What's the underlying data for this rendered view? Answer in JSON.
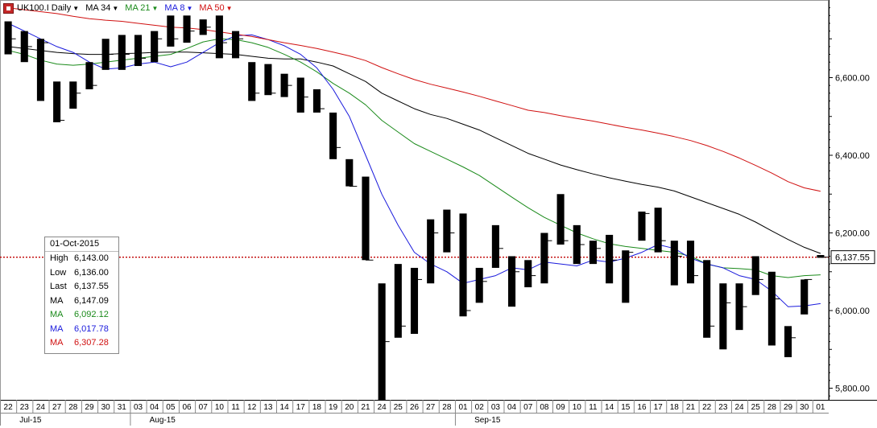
{
  "header": {
    "symbol": "UK100.I Daily",
    "indicators": [
      {
        "label": "MA 34",
        "color": "#000000"
      },
      {
        "label": "MA 21",
        "color": "#1a8a1a"
      },
      {
        "label": "MA 8",
        "color": "#1a1adc"
      },
      {
        "label": "MA 50",
        "color": "#d01010"
      }
    ]
  },
  "info_box": {
    "date": "01-Oct-2015",
    "rows": [
      {
        "label": "High",
        "value": "6,143.00",
        "color": "#000000"
      },
      {
        "label": "Low",
        "value": "6,136.00",
        "color": "#000000"
      },
      {
        "label": "Last",
        "value": "6,137.55",
        "color": "#000000"
      },
      {
        "label": "MA",
        "value": "6,147.09",
        "color": "#000000"
      },
      {
        "label": "MA",
        "value": "6,092.12",
        "color": "#1a8a1a"
      },
      {
        "label": "MA",
        "value": "6,017.78",
        "color": "#1a1adc"
      },
      {
        "label": "MA",
        "value": "6,307.28",
        "color": "#d01010"
      }
    ]
  },
  "last_price_label": "6,137.55",
  "colors": {
    "bar": "#000000",
    "ma34": "#000000",
    "ma21": "#1a8a1a",
    "ma8": "#1a1adc",
    "ma50": "#d01010",
    "last_line": "#c00000",
    "grid": "#cccccc"
  },
  "chart_data": {
    "type": "ohlc",
    "title": "UK100.I Daily",
    "ylim": [
      5770,
      6800
    ],
    "yticks": [
      5800,
      6000,
      6200,
      6400,
      6600
    ],
    "ytick_labels": [
      "5,800.00",
      "6,000.00",
      "6,200.00",
      "6,400.00",
      "6,600.00"
    ],
    "x": [
      "22",
      "23",
      "24",
      "27",
      "28",
      "29",
      "30",
      "31",
      "03",
      "04",
      "05",
      "06",
      "07",
      "10",
      "11",
      "12",
      "13",
      "14",
      "17",
      "18",
      "19",
      "20",
      "21",
      "24",
      "25",
      "26",
      "27",
      "28",
      "01",
      "02",
      "03",
      "04",
      "07",
      "08",
      "09",
      "10",
      "11",
      "14",
      "15",
      "16",
      "17",
      "18",
      "21",
      "22",
      "23",
      "24",
      "25",
      "28",
      "29",
      "30",
      "01"
    ],
    "months": [
      {
        "label": "Jul-15",
        "start": 0,
        "end": 7
      },
      {
        "label": "Aug-15",
        "start": 8,
        "end": 27
      },
      {
        "label": "Sep-15",
        "start": 28,
        "end": 49
      }
    ],
    "ohlc": [
      [
        6745,
        6745,
        6660,
        6700
      ],
      [
        6720,
        6720,
        6640,
        6680
      ],
      [
        6700,
        6700,
        6540,
        6690
      ],
      [
        6590,
        6590,
        6485,
        6490
      ],
      [
        6590,
        6590,
        6520,
        6560
      ],
      [
        6640,
        6640,
        6570,
        6580
      ],
      [
        6700,
        6700,
        6620,
        6660
      ],
      [
        6710,
        6710,
        6620,
        6660
      ],
      [
        6710,
        6710,
        6630,
        6650
      ],
      [
        6720,
        6720,
        6640,
        6700
      ],
      [
        6760,
        6760,
        6680,
        6700
      ],
      [
        6760,
        6760,
        6690,
        6720
      ],
      [
        6750,
        6750,
        6710,
        6730
      ],
      [
        6760,
        6760,
        6650,
        6690
      ],
      [
        6720,
        6720,
        6650,
        6700
      ],
      [
        6640,
        6640,
        6540,
        6560
      ],
      [
        6635,
        6635,
        6555,
        6560
      ],
      [
        6610,
        6610,
        6550,
        6580
      ],
      [
        6600,
        6600,
        6510,
        6550
      ],
      [
        6570,
        6570,
        6510,
        6520
      ],
      [
        6510,
        6510,
        6390,
        6420
      ],
      [
        6390,
        6390,
        6320,
        6320
      ],
      [
        6345,
        6345,
        6130,
        6130
      ],
      [
        6070,
        6070,
        5770,
        5920
      ],
      [
        6120,
        6120,
        5930,
        5960
      ],
      [
        6110,
        6110,
        5940,
        6080
      ],
      [
        6235,
        6235,
        6070,
        6200
      ],
      [
        6260,
        6260,
        6150,
        6200
      ],
      [
        6250,
        6250,
        5985,
        6000
      ],
      [
        6110,
        6110,
        6020,
        6075
      ],
      [
        6220,
        6220,
        6110,
        6160
      ],
      [
        6140,
        6140,
        6010,
        6100
      ],
      [
        6130,
        6130,
        6060,
        6090
      ],
      [
        6200,
        6200,
        6070,
        6180
      ],
      [
        6300,
        6300,
        6170,
        6180
      ],
      [
        6220,
        6220,
        6120,
        6170
      ],
      [
        6180,
        6180,
        6120,
        6160
      ],
      [
        6195,
        6195,
        6070,
        6130
      ],
      [
        6155,
        6155,
        6020,
        6150
      ],
      [
        6255,
        6255,
        6180,
        6250
      ],
      [
        6265,
        6265,
        6150,
        6180
      ],
      [
        6180,
        6180,
        6065,
        6140
      ],
      [
        6180,
        6180,
        6070,
        6090
      ],
      [
        6130,
        6130,
        5930,
        5960
      ],
      [
        6070,
        6070,
        5900,
        6020
      ],
      [
        6070,
        6070,
        5950,
        6010
      ],
      [
        6140,
        6140,
        6040,
        6080
      ],
      [
        6100,
        6100,
        5910,
        6030
      ],
      [
        5960,
        5960,
        5880,
        5930
      ],
      [
        6080,
        6080,
        5990,
        6080
      ],
      [
        6143,
        6143,
        6136,
        6137.55
      ]
    ],
    "series": [
      {
        "name": "MA 34",
        "values": [
          6680,
          6675,
          6670,
          6665,
          6662,
          6660,
          6660,
          6662,
          6663,
          6665,
          6666,
          6666,
          6664,
          6662,
          6660,
          6655,
          6650,
          6648,
          6648,
          6640,
          6630,
          6610,
          6590,
          6560,
          6540,
          6520,
          6505,
          6495,
          6480,
          6465,
          6445,
          6425,
          6405,
          6390,
          6375,
          6363,
          6352,
          6342,
          6333,
          6325,
          6318,
          6308,
          6293,
          6278,
          6263,
          6248,
          6228,
          6205,
          6183,
          6163,
          6147.09
        ]
      },
      {
        "name": "MA 21",
        "values": [
          6670,
          6660,
          6645,
          6635,
          6632,
          6635,
          6640,
          6645,
          6650,
          6655,
          6660,
          6675,
          6692,
          6700,
          6698,
          6690,
          6678,
          6660,
          6640,
          6615,
          6585,
          6560,
          6530,
          6490,
          6460,
          6430,
          6410,
          6390,
          6370,
          6348,
          6320,
          6292,
          6265,
          6240,
          6220,
          6200,
          6185,
          6172,
          6165,
          6160,
          6155,
          6150,
          6140,
          6120,
          6110,
          6108,
          6105,
          6090,
          6085,
          6090,
          6092.12
        ]
      },
      {
        "name": "MA 8",
        "values": [
          6740,
          6720,
          6700,
          6680,
          6665,
          6640,
          6622,
          6625,
          6635,
          6640,
          6628,
          6640,
          6665,
          6690,
          6708,
          6710,
          6698,
          6682,
          6660,
          6625,
          6570,
          6500,
          6400,
          6300,
          6220,
          6150,
          6120,
          6100,
          6070,
          6080,
          6090,
          6110,
          6105,
          6125,
          6120,
          6115,
          6130,
          6125,
          6135,
          6150,
          6170,
          6160,
          6135,
          6120,
          6110,
          6090,
          6080,
          6050,
          6010,
          6012,
          6017.78
        ]
      },
      {
        "name": "MA 50",
        "values": [
          6780,
          6775,
          6770,
          6765,
          6758,
          6752,
          6748,
          6745,
          6740,
          6735,
          6730,
          6728,
          6724,
          6718,
          6712,
          6706,
          6698,
          6690,
          6683,
          6675,
          6666,
          6656,
          6644,
          6626,
          6610,
          6595,
          6583,
          6573,
          6563,
          6552,
          6540,
          6528,
          6516,
          6510,
          6502,
          6495,
          6488,
          6480,
          6472,
          6465,
          6457,
          6448,
          6438,
          6425,
          6410,
          6393,
          6374,
          6354,
          6332,
          6316,
          6307.28
        ]
      }
    ]
  }
}
